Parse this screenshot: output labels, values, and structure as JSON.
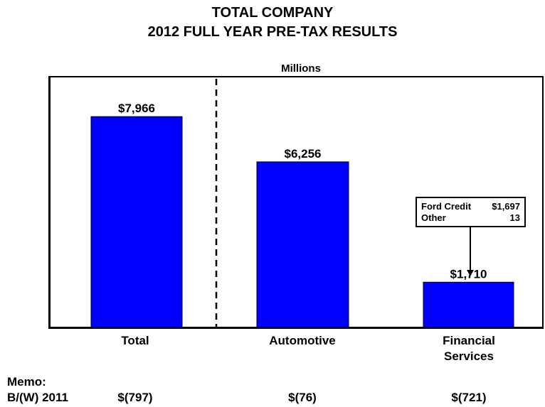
{
  "chart_data": {
    "type": "bar",
    "title": "TOTAL COMPANY",
    "subtitle": "2012 FULL YEAR PRE-TAX RESULTS",
    "units_label": "Millions",
    "categories": [
      "Total",
      "Automotive",
      "Financial Services"
    ],
    "category_lines": [
      [
        "Total"
      ],
      [
        "Automotive"
      ],
      [
        "Financial",
        "Services"
      ]
    ],
    "values": [
      7966,
      6256,
      1710
    ],
    "value_labels": [
      "$7,966",
      "$6,256",
      "$1,710"
    ],
    "ylim": [
      0,
      9500
    ],
    "bar_color": "#0000FF",
    "divider_after_category": "Total",
    "callout": {
      "target_category": "Financial Services",
      "rows": [
        {
          "label": "Ford Credit",
          "value": "$1,697"
        },
        {
          "label": "Other",
          "value": "13"
        }
      ]
    },
    "memo": {
      "title": "Memo:",
      "row_label": "B/(W) 2011",
      "values": [
        "$(797)",
        "$(76)",
        "$(721)"
      ]
    }
  }
}
